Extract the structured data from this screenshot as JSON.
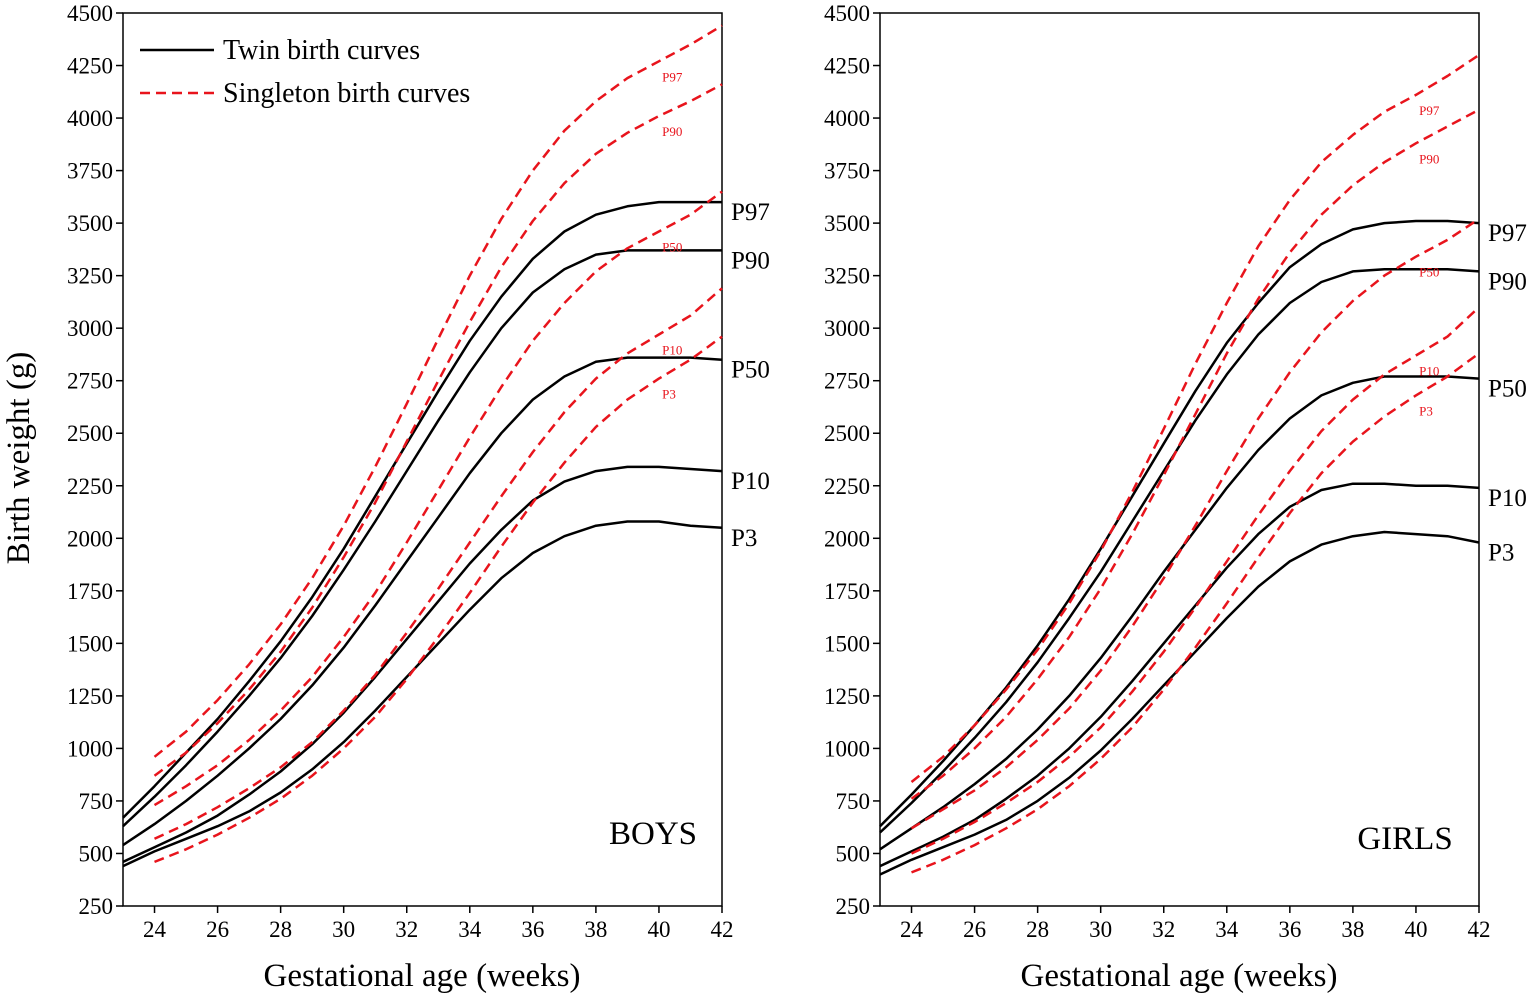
{
  "chart_data": [
    {
      "type": "line",
      "panel_label": "BOYS",
      "xlabel": "Gestational age (weeks)",
      "ylabel": "Birth weight (g)",
      "xlim": [
        23,
        42
      ],
      "ylim": [
        250,
        4500
      ],
      "x_ticks": [
        24,
        26,
        28,
        30,
        32,
        34,
        36,
        38,
        40,
        42
      ],
      "y_ticks": [
        250,
        500,
        750,
        1000,
        1250,
        1500,
        1750,
        2000,
        2250,
        2500,
        2750,
        3000,
        3250,
        3500,
        3750,
        4000,
        4250,
        4500
      ],
      "legend": {
        "position": "top-left",
        "entries": [
          {
            "name": "Twin birth curves",
            "style": "solid",
            "color": "#000000"
          },
          {
            "name": "Singleton birth curves",
            "style": "dashed",
            "color": "#e8141c"
          }
        ]
      },
      "series": [
        {
          "group": "twin",
          "name": "P97",
          "label": "P97",
          "x": [
            23,
            24,
            25,
            26,
            27,
            28,
            29,
            30,
            31,
            32,
            33,
            34,
            35,
            36,
            37,
            38,
            39,
            40,
            41,
            42
          ],
          "values": [
            670,
            820,
            980,
            1140,
            1320,
            1510,
            1720,
            1950,
            2200,
            2450,
            2700,
            2940,
            3150,
            3330,
            3460,
            3540,
            3580,
            3600,
            3600,
            3600
          ]
        },
        {
          "group": "twin",
          "name": "P90",
          "label": "P90",
          "x": [
            23,
            24,
            25,
            26,
            27,
            28,
            29,
            30,
            31,
            32,
            33,
            34,
            35,
            36,
            37,
            38,
            39,
            40,
            41,
            42
          ],
          "values": [
            630,
            770,
            920,
            1080,
            1250,
            1430,
            1630,
            1850,
            2080,
            2320,
            2560,
            2790,
            3000,
            3170,
            3280,
            3350,
            3370,
            3370,
            3370,
            3370
          ]
        },
        {
          "group": "twin",
          "name": "P50",
          "label": "P50",
          "x": [
            23,
            24,
            25,
            26,
            27,
            28,
            29,
            30,
            31,
            32,
            33,
            34,
            35,
            36,
            37,
            38,
            39,
            40,
            41,
            42
          ],
          "values": [
            540,
            640,
            750,
            870,
            1000,
            1140,
            1300,
            1480,
            1680,
            1890,
            2100,
            2310,
            2500,
            2660,
            2770,
            2840,
            2860,
            2860,
            2860,
            2850
          ]
        },
        {
          "group": "twin",
          "name": "P10",
          "label": "P10",
          "x": [
            23,
            24,
            25,
            26,
            27,
            28,
            29,
            30,
            31,
            32,
            33,
            34,
            35,
            36,
            37,
            38,
            39,
            40,
            41,
            42
          ],
          "values": [
            460,
            530,
            600,
            680,
            780,
            890,
            1020,
            1170,
            1340,
            1520,
            1700,
            1880,
            2040,
            2180,
            2270,
            2320,
            2340,
            2340,
            2330,
            2320
          ]
        },
        {
          "group": "twin",
          "name": "P3",
          "label": "P3",
          "x": [
            23,
            24,
            25,
            26,
            27,
            28,
            29,
            30,
            31,
            32,
            33,
            34,
            35,
            36,
            37,
            38,
            39,
            40,
            41,
            42
          ],
          "values": [
            440,
            510,
            570,
            630,
            700,
            790,
            900,
            1030,
            1180,
            1340,
            1500,
            1660,
            1810,
            1930,
            2010,
            2060,
            2080,
            2080,
            2060,
            2050
          ]
        },
        {
          "group": "singleton",
          "name": "P97",
          "label": "P97",
          "x": [
            24,
            25,
            26,
            27,
            28,
            29,
            30,
            31,
            32,
            33,
            34,
            35,
            36,
            37,
            38,
            39,
            40,
            41,
            42
          ],
          "values": [
            960,
            1080,
            1230,
            1400,
            1590,
            1810,
            2060,
            2340,
            2640,
            2950,
            3250,
            3520,
            3750,
            3940,
            4080,
            4190,
            4270,
            4350,
            4440
          ]
        },
        {
          "group": "singleton",
          "name": "P90",
          "label": "P90",
          "x": [
            24,
            25,
            26,
            27,
            28,
            29,
            30,
            31,
            32,
            33,
            34,
            35,
            36,
            37,
            38,
            39,
            40,
            41,
            42
          ],
          "values": [
            870,
            980,
            1120,
            1280,
            1460,
            1670,
            1910,
            2170,
            2460,
            2750,
            3030,
            3290,
            3510,
            3690,
            3830,
            3930,
            4010,
            4080,
            4160
          ]
        },
        {
          "group": "singleton",
          "name": "P50",
          "label": "P50",
          "x": [
            24,
            25,
            26,
            27,
            28,
            29,
            30,
            31,
            32,
            33,
            34,
            35,
            36,
            37,
            38,
            39,
            40,
            41,
            42
          ],
          "values": [
            730,
            820,
            920,
            1040,
            1180,
            1340,
            1530,
            1740,
            1980,
            2230,
            2480,
            2720,
            2940,
            3120,
            3270,
            3380,
            3460,
            3540,
            3650
          ]
        },
        {
          "group": "singleton",
          "name": "P10",
          "label": "P10",
          "x": [
            24,
            25,
            26,
            27,
            28,
            29,
            30,
            31,
            32,
            33,
            34,
            35,
            36,
            37,
            38,
            39,
            40,
            41,
            42
          ],
          "values": [
            570,
            640,
            720,
            810,
            910,
            1030,
            1180,
            1350,
            1550,
            1760,
            1980,
            2200,
            2410,
            2600,
            2760,
            2880,
            2970,
            3060,
            3190
          ]
        },
        {
          "group": "singleton",
          "name": "P3",
          "label": "P3",
          "x": [
            24,
            25,
            26,
            27,
            28,
            29,
            30,
            31,
            32,
            33,
            34,
            35,
            36,
            37,
            38,
            39,
            40,
            41,
            42
          ],
          "values": [
            460,
            520,
            590,
            670,
            760,
            870,
            1000,
            1150,
            1330,
            1530,
            1740,
            1960,
            2170,
            2360,
            2530,
            2660,
            2760,
            2850,
            2960
          ]
        }
      ]
    },
    {
      "type": "line",
      "panel_label": "GIRLS",
      "xlabel": "Gestational age (weeks)",
      "ylabel": "",
      "xlim": [
        23,
        42
      ],
      "ylim": [
        250,
        4500
      ],
      "x_ticks": [
        24,
        26,
        28,
        30,
        32,
        34,
        36,
        38,
        40,
        42
      ],
      "y_ticks": [
        250,
        500,
        750,
        1000,
        1250,
        1500,
        1750,
        2000,
        2250,
        2500,
        2750,
        3000,
        3250,
        3500,
        3750,
        4000,
        4250,
        4500
      ],
      "series": [
        {
          "group": "twin",
          "name": "P97",
          "label": "P97",
          "x": [
            23,
            24,
            25,
            26,
            27,
            28,
            29,
            30,
            31,
            32,
            33,
            34,
            35,
            36,
            37,
            38,
            39,
            40,
            41,
            42
          ],
          "values": [
            630,
            780,
            940,
            1110,
            1290,
            1490,
            1710,
            1950,
            2200,
            2450,
            2700,
            2930,
            3120,
            3290,
            3400,
            3470,
            3500,
            3510,
            3510,
            3500
          ]
        },
        {
          "group": "twin",
          "name": "P90",
          "label": "P90",
          "x": [
            23,
            24,
            25,
            26,
            27,
            28,
            29,
            30,
            31,
            32,
            33,
            34,
            35,
            36,
            37,
            38,
            39,
            40,
            41,
            42
          ],
          "values": [
            600,
            740,
            890,
            1050,
            1220,
            1410,
            1620,
            1840,
            2080,
            2320,
            2560,
            2780,
            2970,
            3120,
            3220,
            3270,
            3280,
            3280,
            3280,
            3270
          ]
        },
        {
          "group": "twin",
          "name": "P50",
          "label": "P50",
          "x": [
            23,
            24,
            25,
            26,
            27,
            28,
            29,
            30,
            31,
            32,
            33,
            34,
            35,
            36,
            37,
            38,
            39,
            40,
            41,
            42
          ],
          "values": [
            520,
            620,
            720,
            830,
            950,
            1090,
            1250,
            1430,
            1630,
            1840,
            2040,
            2240,
            2420,
            2570,
            2680,
            2740,
            2770,
            2770,
            2770,
            2760
          ]
        },
        {
          "group": "twin",
          "name": "P10",
          "label": "P10",
          "x": [
            23,
            24,
            25,
            26,
            27,
            28,
            29,
            30,
            31,
            32,
            33,
            34,
            35,
            36,
            37,
            38,
            39,
            40,
            41,
            42
          ],
          "values": [
            440,
            510,
            580,
            660,
            760,
            870,
            1000,
            1150,
            1320,
            1500,
            1680,
            1860,
            2020,
            2150,
            2230,
            2260,
            2260,
            2250,
            2250,
            2240
          ]
        },
        {
          "group": "twin",
          "name": "P3",
          "label": "P3",
          "x": [
            23,
            24,
            25,
            26,
            27,
            28,
            29,
            30,
            31,
            32,
            33,
            34,
            35,
            36,
            37,
            38,
            39,
            40,
            41,
            42
          ],
          "values": [
            400,
            470,
            530,
            590,
            660,
            750,
            860,
            990,
            1140,
            1300,
            1460,
            1620,
            1770,
            1890,
            1970,
            2010,
            2030,
            2020,
            2010,
            1980
          ]
        },
        {
          "group": "singleton",
          "name": "P97",
          "label": "P97",
          "x": [
            24,
            25,
            26,
            27,
            28,
            29,
            30,
            31,
            32,
            33,
            34,
            35,
            36,
            37,
            38,
            39,
            40,
            41,
            42
          ],
          "values": [
            840,
            960,
            1110,
            1280,
            1470,
            1690,
            1940,
            2220,
            2520,
            2830,
            3120,
            3390,
            3610,
            3790,
            3920,
            4030,
            4110,
            4200,
            4300
          ]
        },
        {
          "group": "singleton",
          "name": "P90",
          "label": "P90",
          "x": [
            24,
            25,
            26,
            27,
            28,
            29,
            30,
            31,
            32,
            33,
            34,
            35,
            36,
            37,
            38,
            39,
            40,
            41,
            42
          ],
          "values": [
            760,
            870,
            1000,
            1150,
            1330,
            1530,
            1760,
            2020,
            2300,
            2590,
            2880,
            3140,
            3360,
            3540,
            3680,
            3790,
            3880,
            3960,
            4040
          ]
        },
        {
          "group": "singleton",
          "name": "P50",
          "label": "P50",
          "x": [
            24,
            25,
            26,
            27,
            28,
            29,
            30,
            31,
            32,
            33,
            34,
            35,
            36,
            37,
            38,
            39,
            40,
            41,
            42
          ],
          "values": [
            620,
            710,
            800,
            910,
            1040,
            1190,
            1370,
            1580,
            1810,
            2060,
            2320,
            2570,
            2790,
            2980,
            3130,
            3250,
            3340,
            3420,
            3520
          ]
        },
        {
          "group": "singleton",
          "name": "P10",
          "label": "P10",
          "x": [
            24,
            25,
            26,
            27,
            28,
            29,
            30,
            31,
            32,
            33,
            34,
            35,
            36,
            37,
            38,
            39,
            40,
            41,
            42
          ],
          "values": [
            500,
            570,
            650,
            740,
            840,
            960,
            1100,
            1270,
            1460,
            1670,
            1890,
            2110,
            2320,
            2510,
            2660,
            2780,
            2870,
            2960,
            3100
          ]
        },
        {
          "group": "singleton",
          "name": "P3",
          "label": "P3",
          "x": [
            24,
            25,
            26,
            27,
            28,
            29,
            30,
            31,
            32,
            33,
            34,
            35,
            36,
            37,
            38,
            39,
            40,
            41,
            42
          ],
          "values": [
            410,
            470,
            540,
            620,
            710,
            820,
            950,
            1100,
            1280,
            1480,
            1690,
            1910,
            2120,
            2310,
            2460,
            2580,
            2680,
            2770,
            2880
          ]
        }
      ]
    }
  ]
}
